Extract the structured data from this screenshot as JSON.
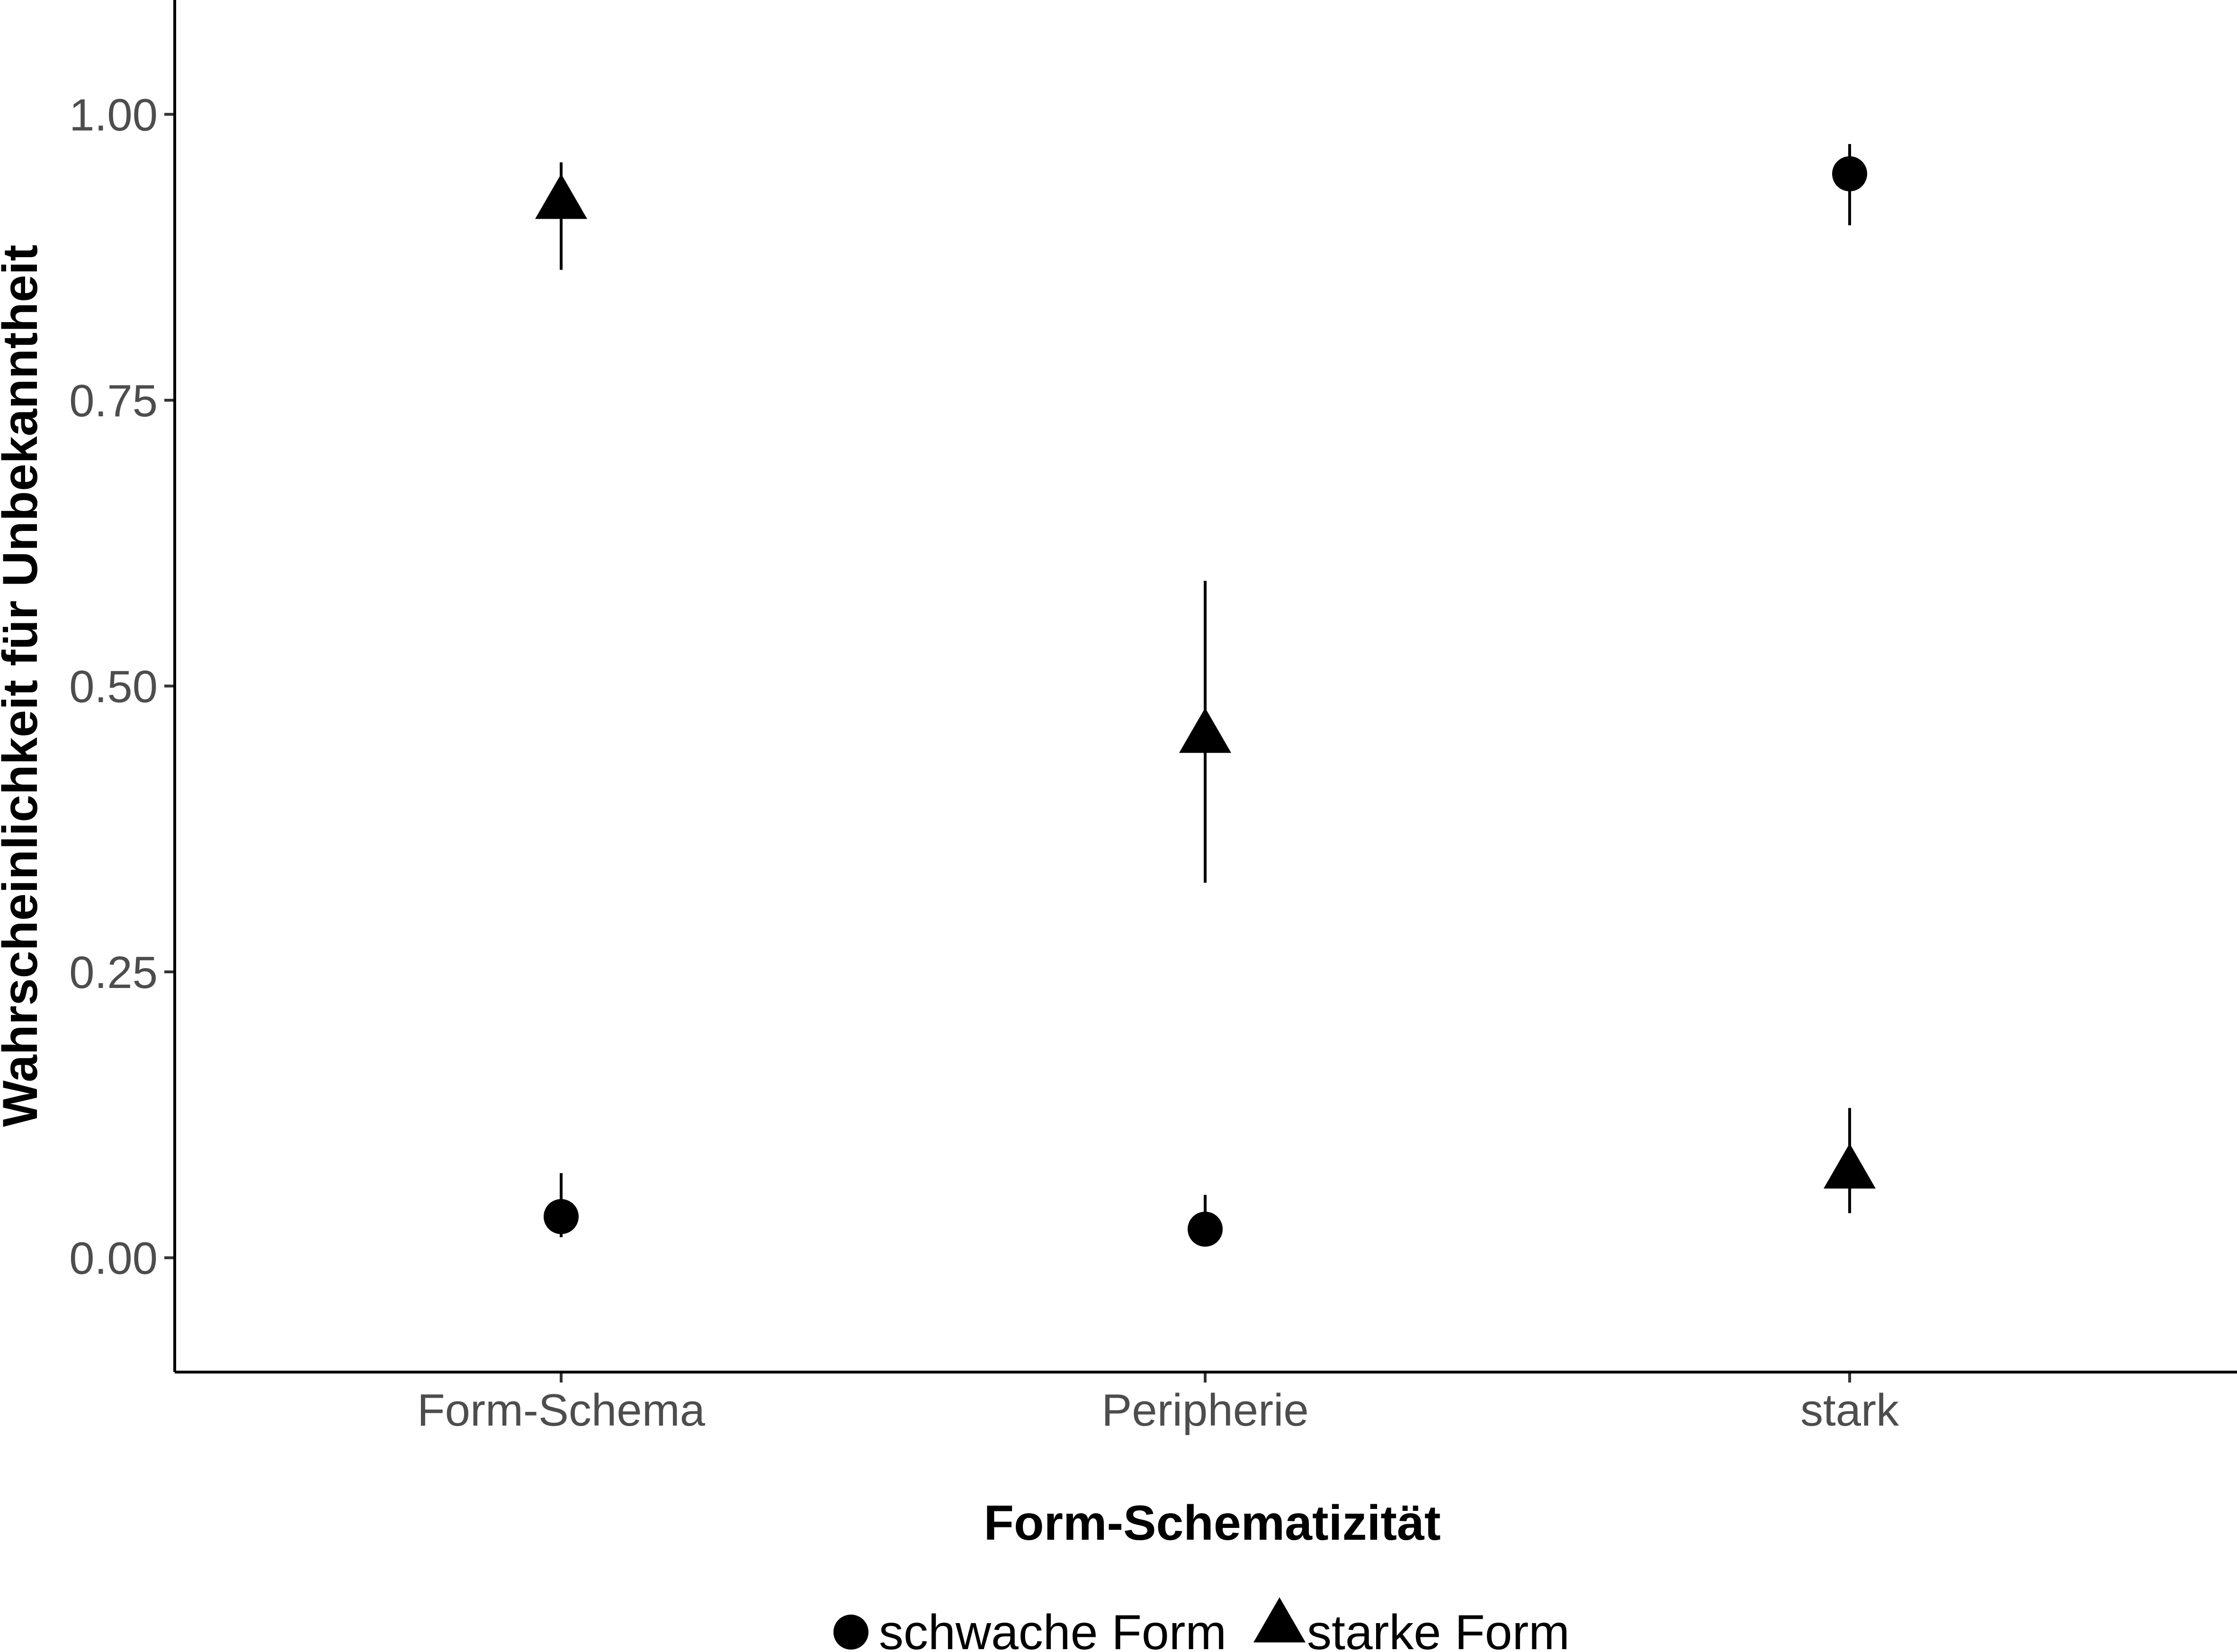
{
  "chart_data": {
    "type": "scatter",
    "categories": [
      "Form-Schema",
      "Peripherie",
      "stark"
    ],
    "xlabel": "Form-Schematizität",
    "ylabel": "Wahrscheinlichkeit für Unbekanntheit",
    "ylim": [
      -0.1,
      1.1
    ],
    "yticks": [
      "0.00",
      "0.25",
      "0.50",
      "0.75",
      "1.00"
    ],
    "grid": false,
    "legend_position": "bottom",
    "series": [
      {
        "name": "schwache Form",
        "marker": "circle",
        "color": "#000000",
        "values": [
          0.036,
          0.025,
          0.948
        ],
        "lower": [
          0.018,
          0.014,
          0.903
        ],
        "upper": [
          0.074,
          0.055,
          0.974
        ]
      },
      {
        "name": "starke Form",
        "marker": "triangle",
        "color": "#000000",
        "values": [
          0.925,
          0.458,
          0.077
        ],
        "lower": [
          0.864,
          0.328,
          0.039
        ],
        "upper": [
          0.958,
          0.592,
          0.131
        ]
      }
    ]
  }
}
